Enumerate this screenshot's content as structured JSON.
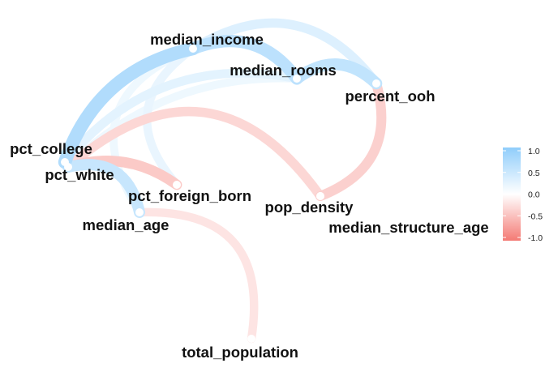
{
  "chart_data": {
    "type": "correlation_network",
    "title": "",
    "xlabel": "",
    "ylabel": "",
    "legend": {
      "placement": "right",
      "ticks": [
        "1.0",
        "0.5",
        "0.0",
        "-0.5",
        "-1.0"
      ],
      "range": [
        -1,
        1
      ],
      "colors": {
        "positive": "#8fcdfb",
        "zero": "#ffffff",
        "negative": "#f47a74"
      }
    },
    "nodes": [
      {
        "id": "median_income",
        "label": "median_income"
      },
      {
        "id": "median_rooms",
        "label": "median_rooms"
      },
      {
        "id": "percent_ooh",
        "label": "percent_ooh"
      },
      {
        "id": "pct_college",
        "label": "pct_college"
      },
      {
        "id": "pct_white",
        "label": "pct_white"
      },
      {
        "id": "pct_foreign_born",
        "label": "pct_foreign_born"
      },
      {
        "id": "pop_density",
        "label": "pop_density"
      },
      {
        "id": "median_structure_age",
        "label": "median_structure_age"
      },
      {
        "id": "median_age",
        "label": "median_age"
      },
      {
        "id": "total_population",
        "label": "total_population"
      }
    ],
    "edges": [
      {
        "from": "median_income",
        "to": "pct_college",
        "r": 0.7
      },
      {
        "from": "median_income",
        "to": "median_rooms",
        "r": 0.6
      },
      {
        "from": "median_rooms",
        "to": "percent_ooh",
        "r": 0.55
      },
      {
        "from": "median_income",
        "to": "percent_ooh",
        "r": 0.3
      },
      {
        "from": "pct_college",
        "to": "pct_white",
        "r": 0.5
      },
      {
        "from": "pct_white",
        "to": "median_age",
        "r": 0.5
      },
      {
        "from": "median_income",
        "to": "pct_foreign_born",
        "r": 0.2
      },
      {
        "from": "pct_college",
        "to": "median_rooms",
        "r": 0.25
      },
      {
        "from": "pct_white",
        "to": "median_rooms",
        "r": 0.15
      },
      {
        "from": "median_income",
        "to": "median_age",
        "r": 0.15
      },
      {
        "from": "pct_white",
        "to": "pct_foreign_born",
        "r": -0.4
      },
      {
        "from": "percent_ooh",
        "to": "pop_density",
        "r": -0.35
      },
      {
        "from": "pct_white",
        "to": "pop_density",
        "r": -0.3
      },
      {
        "from": "median_age",
        "to": "total_population",
        "r": -0.2
      }
    ]
  }
}
